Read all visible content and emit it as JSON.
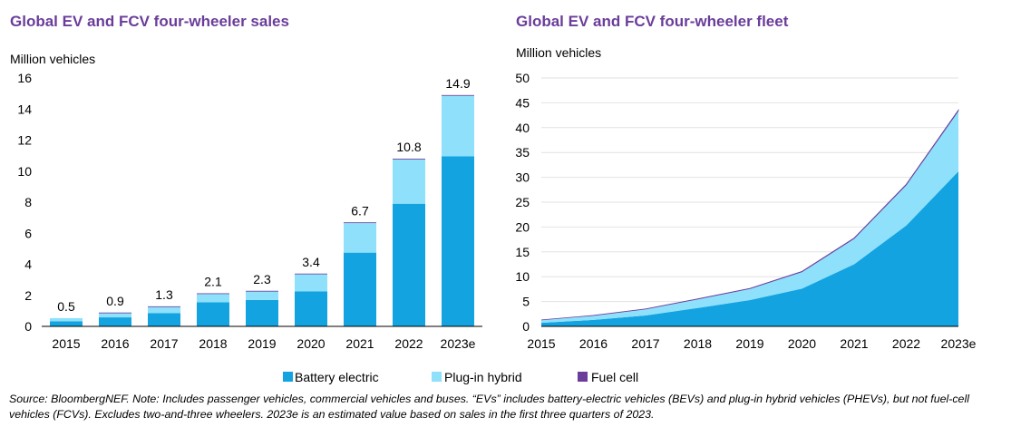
{
  "chart_data": [
    {
      "type": "bar",
      "stacked": true,
      "title": "Global EV and FCV four-wheeler sales",
      "ylabel": "Million vehicles",
      "ylim": [
        0,
        16
      ],
      "yticks": [
        0,
        2,
        4,
        6,
        8,
        10,
        12,
        14,
        16
      ],
      "categories": [
        "2015",
        "2016",
        "2017",
        "2018",
        "2019",
        "2020",
        "2021",
        "2022",
        "2023e"
      ],
      "series": [
        {
          "name": "Battery electric",
          "color": "#12a3e0",
          "values": [
            0.33,
            0.58,
            0.85,
            1.55,
            1.7,
            2.25,
            4.75,
            7.9,
            10.95
          ]
        },
        {
          "name": "Plug-in hybrid",
          "color": "#8ee0fb",
          "values": [
            0.2,
            0.3,
            0.42,
            0.56,
            0.58,
            1.12,
            1.92,
            2.85,
            3.9
          ]
        },
        {
          "name": "Fuel cell",
          "color": "#6a3d9a",
          "values": [
            0.0,
            0.01,
            0.02,
            0.02,
            0.01,
            0.03,
            0.03,
            0.05,
            0.05
          ]
        }
      ],
      "totals": [
        "0.5",
        "0.9",
        "1.3",
        "2.1",
        "2.3",
        "3.4",
        "6.7",
        "10.8",
        "14.9"
      ]
    },
    {
      "type": "area",
      "stacked": true,
      "title": "Global EV and FCV four-wheeler fleet",
      "ylabel": "Million vehicles",
      "ylim": [
        0,
        50
      ],
      "yticks": [
        0,
        5,
        10,
        15,
        20,
        25,
        30,
        35,
        40,
        45,
        50
      ],
      "categories": [
        "2015",
        "2016",
        "2017",
        "2018",
        "2019",
        "2020",
        "2021",
        "2022",
        "2023e"
      ],
      "series": [
        {
          "name": "Battery electric",
          "color": "#12a3e0",
          "values": [
            0.7,
            1.3,
            2.2,
            3.7,
            5.3,
            7.6,
            12.5,
            20.3,
            31.2
          ]
        },
        {
          "name": "Plug-in hybrid",
          "color": "#8ee0fb",
          "values": [
            0.6,
            0.9,
            1.3,
            1.8,
            2.3,
            3.4,
            5.2,
            8.2,
            12.2
          ]
        },
        {
          "name": "Fuel cell",
          "color": "#6a3d9a",
          "values": [
            0.0,
            0.0,
            0.02,
            0.03,
            0.04,
            0.06,
            0.08,
            0.1,
            0.15
          ]
        }
      ]
    }
  ],
  "legend": [
    {
      "label": "Battery electric",
      "color": "#12a3e0"
    },
    {
      "label": "Plug-in hybrid",
      "color": "#8ee0fb"
    },
    {
      "label": "Fuel cell",
      "color": "#6a3d9a"
    }
  ],
  "footnote": "Source: BloombergNEF. Note: Includes passenger vehicles, commercial vehicles and buses. “EVs” includes battery-electric vehicles (BEVs) and plug-in hybrid vehicles (PHEVs), but not fuel-cell vehicles (FCVs). Excludes two-and-three wheelers. 2023e is an estimated value based on sales in the first three quarters of 2023."
}
